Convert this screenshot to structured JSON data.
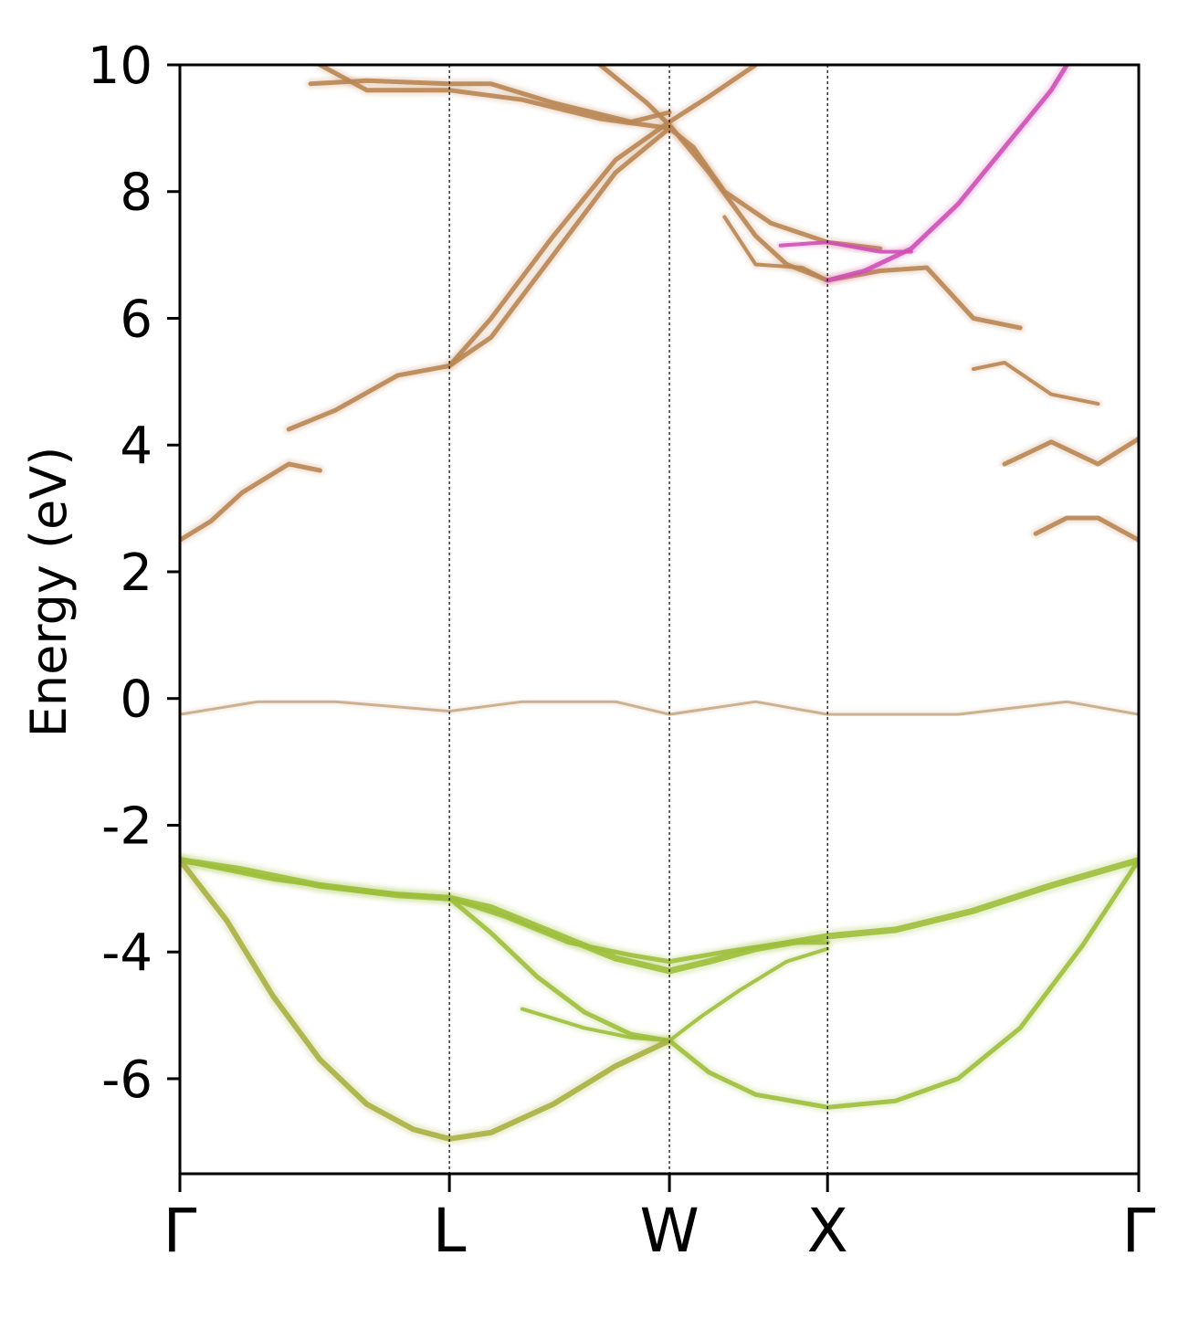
{
  "chart_data": {
    "type": "line",
    "title": "",
    "xlabel": "",
    "ylabel": "Energy (eV)",
    "ylim": [
      -7.5,
      10
    ],
    "yticks": [
      10,
      8,
      6,
      4,
      2,
      0,
      -2,
      -4,
      -6
    ],
    "ytick_labels": [
      "10",
      "8",
      "6",
      "4",
      "2",
      "0",
      "-2",
      "-4",
      "-6"
    ],
    "kpath": [
      {
        "label": "Γ",
        "x": 0.0
      },
      {
        "label": "L",
        "x": 0.866
      },
      {
        "label": "W",
        "x": 1.573
      },
      {
        "label": "X",
        "x": 2.081
      },
      {
        "label": "Γ",
        "x": 3.081
      }
    ],
    "grid": "dotted vertical lines at high-symmetry points",
    "colors": {
      "valence": "#9dbf3a",
      "valence_low": "#a9b040",
      "conduction": "#b98552",
      "conduction_high": "#d24fb6",
      "flat_band": "#c8a986",
      "axis": "#000000"
    },
    "series": [
      {
        "group": "valence",
        "width": 7,
        "points": [
          [
            0.0,
            -2.55
          ],
          [
            0.2,
            -2.7
          ],
          [
            0.45,
            -2.95
          ],
          [
            0.7,
            -3.1
          ],
          [
            0.866,
            -3.15
          ],
          [
            1.0,
            -3.3
          ],
          [
            1.2,
            -3.7
          ],
          [
            1.4,
            -4.1
          ],
          [
            1.573,
            -4.3
          ],
          [
            1.7,
            -4.15
          ],
          [
            1.85,
            -3.95
          ],
          [
            2.081,
            -3.75
          ],
          [
            2.3,
            -3.65
          ],
          [
            2.55,
            -3.35
          ],
          [
            2.8,
            -2.95
          ],
          [
            3.081,
            -2.55
          ]
        ]
      },
      {
        "group": "valence",
        "width": 5,
        "points": [
          [
            0.0,
            -2.55
          ],
          [
            0.3,
            -2.85
          ],
          [
            0.6,
            -3.05
          ],
          [
            0.866,
            -3.15
          ],
          [
            1.05,
            -3.45
          ],
          [
            1.25,
            -3.85
          ],
          [
            1.45,
            -4.05
          ],
          [
            1.573,
            -4.15
          ],
          [
            1.75,
            -4.0
          ],
          [
            1.95,
            -3.85
          ],
          [
            2.081,
            -3.85
          ]
        ]
      },
      {
        "group": "valence",
        "width": 5,
        "points": [
          [
            0.866,
            -3.15
          ],
          [
            1.0,
            -3.7
          ],
          [
            1.15,
            -4.4
          ],
          [
            1.3,
            -4.95
          ],
          [
            1.45,
            -5.3
          ],
          [
            1.573,
            -5.4
          ],
          [
            1.7,
            -5.9
          ],
          [
            1.85,
            -6.25
          ],
          [
            2.081,
            -6.45
          ],
          [
            2.3,
            -6.35
          ],
          [
            2.5,
            -6.0
          ],
          [
            2.7,
            -5.2
          ],
          [
            2.9,
            -3.9
          ],
          [
            3.081,
            -2.55
          ]
        ]
      },
      {
        "group": "valence",
        "width": 4,
        "points": [
          [
            1.1,
            -4.9
          ],
          [
            1.3,
            -5.2
          ],
          [
            1.45,
            -5.35
          ],
          [
            1.573,
            -5.4
          ],
          [
            1.68,
            -5.0
          ],
          [
            1.8,
            -4.6
          ],
          [
            1.95,
            -4.15
          ],
          [
            2.081,
            -3.95
          ]
        ]
      },
      {
        "group": "valence_low",
        "width": 6,
        "points": [
          [
            0.0,
            -2.55
          ],
          [
            0.15,
            -3.5
          ],
          [
            0.3,
            -4.7
          ],
          [
            0.45,
            -5.7
          ],
          [
            0.6,
            -6.4
          ],
          [
            0.75,
            -6.8
          ],
          [
            0.866,
            -6.95
          ],
          [
            1.0,
            -6.85
          ],
          [
            1.2,
            -6.4
          ],
          [
            1.4,
            -5.8
          ],
          [
            1.573,
            -5.4
          ]
        ]
      },
      {
        "group": "flat_band",
        "width": 3,
        "points": [
          [
            0.0,
            -0.25
          ],
          [
            0.25,
            -0.05
          ],
          [
            0.5,
            -0.05
          ],
          [
            0.866,
            -0.2
          ],
          [
            1.1,
            -0.05
          ],
          [
            1.4,
            -0.05
          ],
          [
            1.573,
            -0.25
          ],
          [
            1.85,
            -0.05
          ],
          [
            2.081,
            -0.25
          ],
          [
            2.5,
            -0.25
          ],
          [
            2.85,
            -0.05
          ],
          [
            3.081,
            -0.25
          ]
        ]
      },
      {
        "group": "conduction",
        "width": 5,
        "points": [
          [
            0.0,
            2.5
          ],
          [
            0.1,
            2.8
          ],
          [
            0.2,
            3.25
          ],
          [
            0.35,
            3.7
          ],
          [
            0.45,
            3.6
          ]
        ]
      },
      {
        "group": "conduction",
        "width": 5,
        "points": [
          [
            3.081,
            2.5
          ],
          [
            2.95,
            2.85
          ],
          [
            2.85,
            2.85
          ],
          [
            2.75,
            2.6
          ]
        ]
      },
      {
        "group": "conduction",
        "width": 5,
        "points": [
          [
            3.081,
            4.1
          ],
          [
            2.95,
            3.7
          ],
          [
            2.8,
            4.05
          ],
          [
            2.65,
            3.7
          ]
        ]
      },
      {
        "group": "conduction",
        "width": 5,
        "points": [
          [
            0.35,
            4.25
          ],
          [
            0.5,
            4.55
          ],
          [
            0.7,
            5.1
          ],
          [
            0.866,
            5.25
          ],
          [
            1.0,
            5.7
          ],
          [
            1.2,
            7.0
          ],
          [
            1.4,
            8.3
          ],
          [
            1.573,
            9.0
          ],
          [
            1.65,
            8.7
          ],
          [
            1.75,
            8.0
          ],
          [
            1.9,
            7.5
          ],
          [
            2.081,
            7.2
          ],
          [
            2.25,
            7.1
          ]
        ]
      },
      {
        "group": "conduction",
        "width": 5,
        "points": [
          [
            0.866,
            5.25
          ],
          [
            1.0,
            6.0
          ],
          [
            1.2,
            7.3
          ],
          [
            1.4,
            8.5
          ],
          [
            1.573,
            9.1
          ],
          [
            1.7,
            9.5
          ],
          [
            1.85,
            10.0
          ]
        ]
      },
      {
        "group": "conduction",
        "width": 5,
        "points": [
          [
            0.45,
            10.0
          ],
          [
            0.6,
            9.6
          ],
          [
            0.866,
            9.6
          ],
          [
            1.1,
            9.45
          ],
          [
            1.35,
            9.15
          ],
          [
            1.573,
            9.0
          ]
        ]
      },
      {
        "group": "conduction",
        "width": 5,
        "points": [
          [
            0.42,
            9.7
          ],
          [
            0.6,
            9.75
          ],
          [
            0.866,
            9.7
          ],
          [
            1.0,
            9.7
          ],
          [
            1.2,
            9.4
          ],
          [
            1.45,
            9.1
          ],
          [
            1.573,
            9.25
          ]
        ]
      },
      {
        "group": "conduction",
        "width": 5,
        "points": [
          [
            1.35,
            10.0
          ],
          [
            1.5,
            9.4
          ],
          [
            1.573,
            9.05
          ],
          [
            1.7,
            8.3
          ],
          [
            1.85,
            7.3
          ],
          [
            1.95,
            6.85
          ],
          [
            2.081,
            6.6
          ],
          [
            2.25,
            6.75
          ],
          [
            2.4,
            6.8
          ],
          [
            2.55,
            6.0
          ],
          [
            2.7,
            5.85
          ]
        ]
      },
      {
        "group": "conduction",
        "width": 4,
        "points": [
          [
            1.75,
            7.6
          ],
          [
            1.85,
            6.85
          ],
          [
            2.0,
            6.8
          ],
          [
            2.081,
            6.6
          ]
        ]
      },
      {
        "group": "conduction",
        "width": 4,
        "points": [
          [
            2.55,
            5.2
          ],
          [
            2.65,
            5.3
          ],
          [
            2.8,
            4.8
          ],
          [
            2.95,
            4.65
          ]
        ]
      },
      {
        "group": "conduction_high",
        "width": 5,
        "points": [
          [
            2.081,
            6.6
          ],
          [
            2.2,
            6.75
          ],
          [
            2.35,
            7.1
          ],
          [
            2.5,
            7.8
          ],
          [
            2.65,
            8.7
          ],
          [
            2.8,
            9.6
          ],
          [
            2.85,
            10.0
          ]
        ]
      },
      {
        "group": "conduction_high",
        "width": 4,
        "points": [
          [
            1.93,
            7.15
          ],
          [
            2.081,
            7.2
          ],
          [
            2.25,
            7.05
          ],
          [
            2.35,
            7.05
          ]
        ]
      }
    ]
  }
}
